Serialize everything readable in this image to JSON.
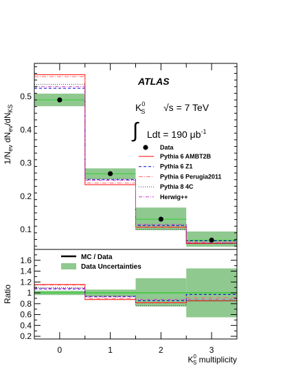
{
  "chart_data": [
    {
      "type": "line",
      "panel": "main",
      "ylabel": "1/N_ev dN_ev/dN_KS",
      "ylim": [
        0.04,
        0.6
      ],
      "yticks": [
        0.1,
        0.2,
        0.3,
        0.4,
        0.5
      ],
      "ytick_labels": [
        "0.1",
        "0.2",
        "0.3",
        "0.4",
        "0.5"
      ],
      "x": [
        0,
        1,
        2,
        3
      ],
      "data": {
        "name": "Data",
        "values": [
          0.49,
          0.268,
          0.131,
          0.068
        ],
        "band_low": [
          0.471,
          0.252,
          0.098,
          0.048
        ],
        "band_high": [
          0.509,
          0.284,
          0.166,
          0.094
        ],
        "color": "#000000",
        "band_color": "#8fc98f"
      },
      "series": [
        {
          "name": "Pythia 6 AMBT2B",
          "values": [
            0.566,
            0.235,
            0.107,
            0.058
          ],
          "color": "#ff0000",
          "dash": ""
        },
        {
          "name": "Pythia 6 Z1",
          "values": [
            0.525,
            0.25,
            0.112,
            0.066
          ],
          "color": "#0000cc",
          "dash": "4,3"
        },
        {
          "name": "Pythia 6 Perugia2011",
          "values": [
            0.56,
            0.24,
            0.108,
            0.062
          ],
          "color": "#ff6666",
          "dash": "6,2,1,2"
        },
        {
          "name": "Pythia 8 4C",
          "values": [
            0.537,
            0.252,
            0.1,
            0.058
          ],
          "color": "#333333",
          "dash": "1,2"
        },
        {
          "name": "Herwig++",
          "values": [
            0.53,
            0.248,
            0.115,
            0.06
          ],
          "color": "#cc33cc",
          "dash": "5,2,1,2"
        }
      ],
      "legend_position": "right",
      "annotations": {
        "experiment": "ATLAS",
        "particle": "K",
        "particle_sub": "S",
        "particle_sup": "0",
        "energy": "√s = 7 TeV",
        "lumi_integral": "∫",
        "lumi": "Ldt = 190 μb",
        "lumi_exp": "-1"
      }
    },
    {
      "type": "line",
      "panel": "ratio",
      "ylabel": "Ratio",
      "ylim": [
        0.15,
        1.8
      ],
      "yticks": [
        0.2,
        0.4,
        0.6,
        0.8,
        1,
        1.2,
        1.4,
        1.6
      ],
      "ytick_labels": [
        "0.2",
        "0.4",
        "0.6",
        "0.8",
        "1",
        "1.2",
        "1.4",
        "1.6"
      ],
      "xlabel": "K⁰S multiplicity",
      "xlabel_main": "K",
      "xlabel_sub": "S",
      "xlabel_sup": "0",
      "xlabel_rest": " multiplicity",
      "categories": [
        "0",
        "1",
        "2",
        "3"
      ],
      "band_low": [
        0.96,
        0.94,
        0.75,
        0.55
      ],
      "band_high": [
        1.04,
        1.06,
        1.27,
        1.45
      ],
      "series": [
        {
          "name": "Pythia 6 AMBT2B",
          "values": [
            1.155,
            0.877,
            0.817,
            0.853
          ],
          "color": "#ff0000",
          "dash": ""
        },
        {
          "name": "Pythia 6 Z1",
          "values": [
            1.071,
            0.933,
            0.855,
            0.97
          ],
          "color": "#0000cc",
          "dash": "4,3"
        },
        {
          "name": "Pythia 6 Perugia2011",
          "values": [
            1.143,
            0.896,
            0.824,
            0.912
          ],
          "color": "#ff6666",
          "dash": "6,2,1,2"
        },
        {
          "name": "Pythia 8 4C",
          "values": [
            1.096,
            0.94,
            0.763,
            0.853
          ],
          "color": "#333333",
          "dash": "1,2"
        },
        {
          "name": "Herwig++",
          "values": [
            1.082,
            0.925,
            0.878,
            0.882
          ],
          "color": "#cc33cc",
          "dash": "5,2,1,2"
        }
      ],
      "legend": [
        {
          "name": "MC / Data",
          "kind": "line",
          "color": "#000000"
        },
        {
          "name": "Data Uncertainties",
          "kind": "band",
          "color": "#8fc98f"
        }
      ]
    }
  ]
}
